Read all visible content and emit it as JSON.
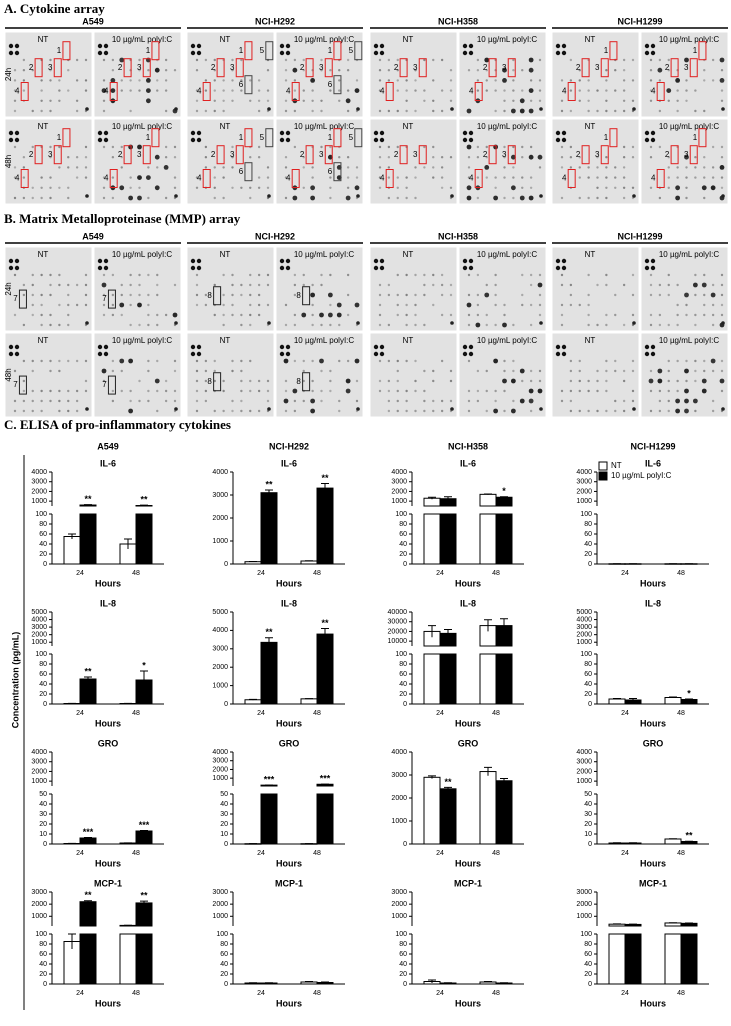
{
  "panel_a": {
    "title": "A. Cytokine array",
    "cell_lines": [
      "A549",
      "NCI-H292",
      "NCI-H358",
      "NCI-H1299"
    ],
    "conditions": [
      "NT",
      "10 µg/mL polyI:C"
    ],
    "times": [
      "24h",
      "48h"
    ],
    "spot_labels": [
      "1",
      "2",
      "3",
      "4",
      "5",
      "6"
    ]
  },
  "panel_b": {
    "title": "B. Matrix Metalloproteinase (MMP) array",
    "cell_lines": [
      "A549",
      "NCI-H292",
      "NCI-H358",
      "NCI-H1299"
    ],
    "conditions": [
      "NT",
      "10 µg/mL polyI:C"
    ],
    "times": [
      "24h",
      "48h"
    ],
    "spot_labels": [
      "7",
      "8"
    ]
  },
  "panel_c": {
    "title": "C. ELISA of pro-inflammatory cytokines",
    "columns": [
      "A549",
      "NCI-H292",
      "NCI-H358",
      "NCI-H1299"
    ],
    "y_label": "Concentration (pg/mL)"
  },
  "chart_data": [
    {
      "type": "bar",
      "title": "IL-6",
      "categories": [
        "24",
        "48"
      ],
      "x_label": "Hours",
      "axis_segments": [
        {
          "ylim": [
            0,
            100
          ],
          "yticks": [
            0,
            20,
            40,
            60,
            80,
            100
          ]
        },
        {
          "ylim": [
            500,
            4000
          ],
          "yticks": [
            1000,
            2000,
            3000,
            4000
          ]
        }
      ],
      "series": [
        {
          "name": "NT",
          "color": "#ffffff",
          "values": [
            55,
            40
          ],
          "errors": [
            5,
            10
          ]
        },
        {
          "name": "10 µg/mL polyI:C",
          "color": "#000000",
          "values": [
            600,
            550
          ],
          "errors": [
            40,
            40
          ],
          "significance": [
            "**",
            "**"
          ]
        }
      ]
    },
    {
      "type": "bar",
      "title": "IL-6",
      "categories": [
        "24",
        "48"
      ],
      "x_label": "Hours",
      "axis_segments": [
        {
          "ylim": [
            0,
            4000
          ],
          "yticks": [
            0,
            1000,
            2000,
            3000,
            4000
          ]
        }
      ],
      "series": [
        {
          "name": "NT",
          "color": "#ffffff",
          "values": [
            100,
            130
          ],
          "errors": [
            10,
            10
          ]
        },
        {
          "name": "10 µg/mL polyI:C",
          "color": "#000000",
          "values": [
            3100,
            3300
          ],
          "errors": [
            120,
            200
          ],
          "significance": [
            "**",
            "**"
          ]
        }
      ]
    },
    {
      "type": "bar",
      "title": "IL-6",
      "categories": [
        "24",
        "48"
      ],
      "x_label": "Hours",
      "axis_segments": [
        {
          "ylim": [
            0,
            100
          ],
          "yticks": [
            0,
            20,
            40,
            60,
            80,
            100
          ]
        },
        {
          "ylim": [
            500,
            4000
          ],
          "yticks": [
            1000,
            2000,
            3000,
            4000
          ]
        }
      ],
      "series": [
        {
          "name": "NT",
          "color": "#ffffff",
          "values": [
            1300,
            1700
          ],
          "errors": [
            100,
            40
          ]
        },
        {
          "name": "10 µg/mL polyI:C",
          "color": "#000000",
          "values": [
            1250,
            1400
          ],
          "errors": [
            200,
            50
          ],
          "significance": [
            null,
            "*"
          ]
        }
      ]
    },
    {
      "type": "bar",
      "title": "IL-6",
      "categories": [
        "24",
        "48"
      ],
      "x_label": "Hours",
      "legend": "upper left",
      "axis_segments": [
        {
          "ylim": [
            0,
            100
          ],
          "yticks": [
            0,
            20,
            40,
            60,
            80,
            100
          ]
        },
        {
          "ylim": [
            500,
            4000
          ],
          "yticks": [
            1000,
            2000,
            3000,
            4000
          ]
        }
      ],
      "series": [
        {
          "name": "NT",
          "color": "#ffffff",
          "values": [
            0.5,
            0.5
          ],
          "errors": [
            0.1,
            0.1
          ]
        },
        {
          "name": "10 µg/mL polyI:C",
          "color": "#000000",
          "values": [
            0.5,
            0.5
          ],
          "errors": [
            0.1,
            0.1
          ]
        }
      ]
    },
    {
      "type": "bar",
      "title": "IL-8",
      "categories": [
        "24",
        "48"
      ],
      "x_label": "Hours",
      "axis_segments": [
        {
          "ylim": [
            0,
            100
          ],
          "yticks": [
            0,
            20,
            40,
            60,
            80,
            100
          ]
        },
        {
          "ylim": [
            500,
            5000
          ],
          "yticks": [
            1000,
            2000,
            3000,
            4000,
            5000
          ]
        }
      ],
      "series": [
        {
          "name": "NT",
          "color": "#ffffff",
          "values": [
            1,
            1
          ],
          "errors": [
            0.2,
            0.2
          ]
        },
        {
          "name": "10 µg/mL polyI:C",
          "color": "#000000",
          "values": [
            50,
            48
          ],
          "errors": [
            4,
            18
          ],
          "significance": [
            "**",
            "*"
          ]
        }
      ]
    },
    {
      "type": "bar",
      "title": "IL-8",
      "categories": [
        "24",
        "48"
      ],
      "x_label": "Hours",
      "axis_segments": [
        {
          "ylim": [
            0,
            5000
          ],
          "yticks": [
            0,
            1000,
            2000,
            3000,
            4000,
            5000
          ]
        }
      ],
      "series": [
        {
          "name": "NT",
          "color": "#ffffff",
          "values": [
            230,
            280
          ],
          "errors": [
            20,
            10
          ]
        },
        {
          "name": "10 µg/mL polyI:C",
          "color": "#000000",
          "values": [
            3350,
            3800
          ],
          "errors": [
            250,
            300
          ],
          "significance": [
            "**",
            "**"
          ]
        }
      ]
    },
    {
      "type": "bar",
      "title": "IL-8",
      "categories": [
        "24",
        "48"
      ],
      "x_label": "Hours",
      "axis_segments": [
        {
          "ylim": [
            0,
            100
          ],
          "yticks": [
            0,
            20,
            40,
            60,
            80,
            100
          ]
        },
        {
          "ylim": [
            5000,
            40000
          ],
          "yticks": [
            10000,
            20000,
            30000,
            40000
          ]
        }
      ],
      "series": [
        {
          "name": "NT",
          "color": "#ffffff",
          "values": [
            20000,
            26000
          ],
          "errors": [
            6000,
            6000
          ]
        },
        {
          "name": "10 µg/mL polyI:C",
          "color": "#000000",
          "values": [
            18000,
            26000
          ],
          "errors": [
            4000,
            7000
          ]
        }
      ]
    },
    {
      "type": "bar",
      "title": "IL-8",
      "categories": [
        "24",
        "48"
      ],
      "x_label": "Hours",
      "axis_segments": [
        {
          "ylim": [
            0,
            100
          ],
          "yticks": [
            0,
            20,
            40,
            60,
            80,
            100
          ]
        },
        {
          "ylim": [
            500,
            5000
          ],
          "yticks": [
            1000,
            2000,
            3000,
            4000,
            5000
          ]
        }
      ],
      "series": [
        {
          "name": "NT",
          "color": "#ffffff",
          "values": [
            10,
            13
          ],
          "errors": [
            1,
            1
          ]
        },
        {
          "name": "10 µg/mL polyI:C",
          "color": "#000000",
          "values": [
            8,
            9
          ],
          "errors": [
            3,
            1
          ],
          "significance": [
            null,
            "*"
          ]
        }
      ]
    },
    {
      "type": "bar",
      "title": "GRO",
      "categories": [
        "24",
        "48"
      ],
      "x_label": "Hours",
      "axis_segments": [
        {
          "ylim": [
            0,
            50
          ],
          "yticks": [
            0,
            10,
            20,
            30,
            40,
            50
          ]
        },
        {
          "ylim": [
            500,
            4000
          ],
          "yticks": [
            1000,
            2000,
            3000,
            4000
          ]
        }
      ],
      "series": [
        {
          "name": "NT",
          "color": "#ffffff",
          "values": [
            0.5,
            1
          ],
          "errors": [
            0.1,
            0.1
          ]
        },
        {
          "name": "10 µg/mL polyI:C",
          "color": "#000000",
          "values": [
            6,
            13
          ],
          "errors": [
            0.5,
            0.5
          ],
          "significance": [
            "***",
            "***"
          ]
        }
      ]
    },
    {
      "type": "bar",
      "title": "GRO",
      "categories": [
        "24",
        "48"
      ],
      "x_label": "Hours",
      "axis_segments": [
        {
          "ylim": [
            0,
            50
          ],
          "yticks": [
            0,
            10,
            20,
            30,
            40,
            50
          ]
        },
        {
          "ylim": [
            100,
            4000
          ],
          "yticks": [
            1000,
            2000,
            3000,
            4000
          ]
        }
      ],
      "series": [
        {
          "name": "NT",
          "color": "#ffffff",
          "values": [
            0.3,
            0.3
          ],
          "errors": [
            0.1,
            0.1
          ]
        },
        {
          "name": "10 µg/mL polyI:C",
          "color": "#000000",
          "values": [
            200,
            300
          ],
          "errors": [
            10,
            10
          ],
          "significance": [
            "***",
            "***"
          ]
        }
      ]
    },
    {
      "type": "bar",
      "title": "GRO",
      "categories": [
        "24",
        "48"
      ],
      "x_label": "Hours",
      "axis_segments": [
        {
          "ylim": [
            0,
            4000
          ],
          "yticks": [
            0,
            1000,
            2000,
            3000,
            4000
          ]
        }
      ],
      "series": [
        {
          "name": "NT",
          "color": "#ffffff",
          "values": [
            2900,
            3150
          ],
          "errors": [
            60,
            180
          ]
        },
        {
          "name": "10 µg/mL polyI:C",
          "color": "#000000",
          "values": [
            2400,
            2750
          ],
          "errors": [
            60,
            100
          ],
          "significance": [
            "**",
            null
          ]
        }
      ]
    },
    {
      "type": "bar",
      "title": "GRO",
      "categories": [
        "24",
        "48"
      ],
      "x_label": "Hours",
      "axis_segments": [
        {
          "ylim": [
            0,
            50
          ],
          "yticks": [
            0,
            10,
            20,
            30,
            40,
            50
          ]
        },
        {
          "ylim": [
            500,
            4000
          ],
          "yticks": [
            1000,
            2000,
            3000,
            4000
          ]
        }
      ],
      "series": [
        {
          "name": "NT",
          "color": "#ffffff",
          "values": [
            1,
            5
          ],
          "errors": [
            0.2,
            0.3
          ]
        },
        {
          "name": "10 µg/mL polyI:C",
          "color": "#000000",
          "values": [
            1,
            2.5
          ],
          "errors": [
            0.2,
            0.3
          ],
          "significance": [
            null,
            "**"
          ]
        }
      ]
    },
    {
      "type": "bar",
      "title": "MCP-1",
      "categories": [
        "24",
        "48"
      ],
      "x_label": "Hours",
      "axis_segments": [
        {
          "ylim": [
            0,
            100
          ],
          "yticks": [
            0,
            20,
            40,
            60,
            80,
            100
          ]
        },
        {
          "ylim": [
            200,
            3000
          ],
          "yticks": [
            1000,
            2000,
            3000
          ]
        }
      ],
      "series": [
        {
          "name": "NT",
          "color": "#ffffff",
          "values": [
            85,
            250
          ],
          "errors": [
            15,
            10
          ]
        },
        {
          "name": "10 µg/mL polyI:C",
          "color": "#000000",
          "values": [
            2200,
            2100
          ],
          "errors": [
            80,
            150
          ],
          "significance": [
            "**",
            "**"
          ]
        }
      ]
    },
    {
      "type": "bar",
      "title": "MCP-1",
      "categories": [
        "24",
        "48"
      ],
      "x_label": "Hours",
      "axis_segments": [
        {
          "ylim": [
            0,
            100
          ],
          "yticks": [
            0,
            20,
            40,
            60,
            80,
            100
          ]
        },
        {
          "ylim": [
            200,
            3000
          ],
          "yticks": [
            1000,
            2000,
            3000
          ]
        }
      ],
      "series": [
        {
          "name": "NT",
          "color": "#ffffff",
          "values": [
            2,
            4
          ],
          "errors": [
            0.5,
            1
          ]
        },
        {
          "name": "10 µg/mL polyI:C",
          "color": "#000000",
          "values": [
            2,
            3
          ],
          "errors": [
            0.5,
            1
          ]
        }
      ]
    },
    {
      "type": "bar",
      "title": "MCP-1",
      "categories": [
        "24",
        "48"
      ],
      "x_label": "Hours",
      "axis_segments": [
        {
          "ylim": [
            0,
            100
          ],
          "yticks": [
            0,
            20,
            40,
            60,
            80,
            100
          ]
        },
        {
          "ylim": [
            200,
            3000
          ],
          "yticks": [
            1000,
            2000,
            3000
          ]
        }
      ],
      "series": [
        {
          "name": "NT",
          "color": "#ffffff",
          "values": [
            5,
            4
          ],
          "errors": [
            3,
            1
          ]
        },
        {
          "name": "10 µg/mL polyI:C",
          "color": "#000000",
          "values": [
            2,
            2
          ],
          "errors": [
            0.5,
            0.5
          ]
        }
      ]
    },
    {
      "type": "bar",
      "title": "MCP-1",
      "categories": [
        "24",
        "48"
      ],
      "x_label": "Hours",
      "axis_segments": [
        {
          "ylim": [
            0,
            100
          ],
          "yticks": [
            0,
            20,
            40,
            60,
            80,
            100
          ]
        },
        {
          "ylim": [
            200,
            3000
          ],
          "yticks": [
            1000,
            2000,
            3000
          ]
        }
      ],
      "series": [
        {
          "name": "NT",
          "color": "#ffffff",
          "values": [
            350,
            450
          ],
          "errors": [
            20,
            20
          ]
        },
        {
          "name": "10 µg/mL polyI:C",
          "color": "#000000",
          "values": [
            330,
            420
          ],
          "errors": [
            20,
            30
          ]
        }
      ]
    }
  ]
}
